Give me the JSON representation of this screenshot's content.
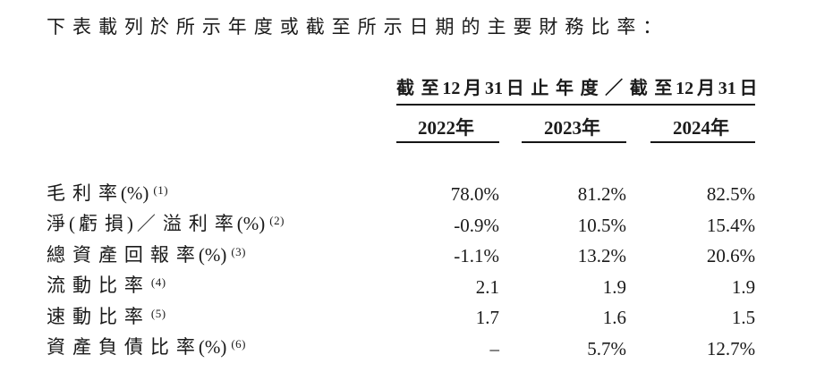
{
  "page": {
    "intro": "下表載列於所示年度或截至所示日期的主要財務比率："
  },
  "table": {
    "header": {
      "period_title": "截至12月31日止年度／截至12月31日",
      "years": [
        "2022年",
        "2023年",
        "2024年"
      ]
    },
    "rows": [
      {
        "label": "毛利率(%)",
        "note": "(1)",
        "values": [
          "78.0%",
          "81.2%",
          "82.5%"
        ]
      },
      {
        "label": "淨(虧損)／溢利率(%)",
        "note": "(2)",
        "values": [
          "-0.9%",
          "10.5%",
          "15.4%"
        ]
      },
      {
        "label": "總資產回報率(%)",
        "note": "(3)",
        "values": [
          "-1.1%",
          "13.2%",
          "20.6%"
        ]
      },
      {
        "label": "流動比率",
        "note": "(4)",
        "values": [
          "2.1",
          "1.9",
          "1.9"
        ]
      },
      {
        "label": "速動比率",
        "note": "(5)",
        "values": [
          "1.7",
          "1.6",
          "1.5"
        ]
      },
      {
        "label": "資產負債比率(%)",
        "note": "(6)",
        "values": [
          "–",
          "5.7%",
          "12.7%"
        ]
      }
    ]
  },
  "colors": {
    "text": "#1a1a1a",
    "rule": "#151515",
    "background": "#ffffff"
  }
}
